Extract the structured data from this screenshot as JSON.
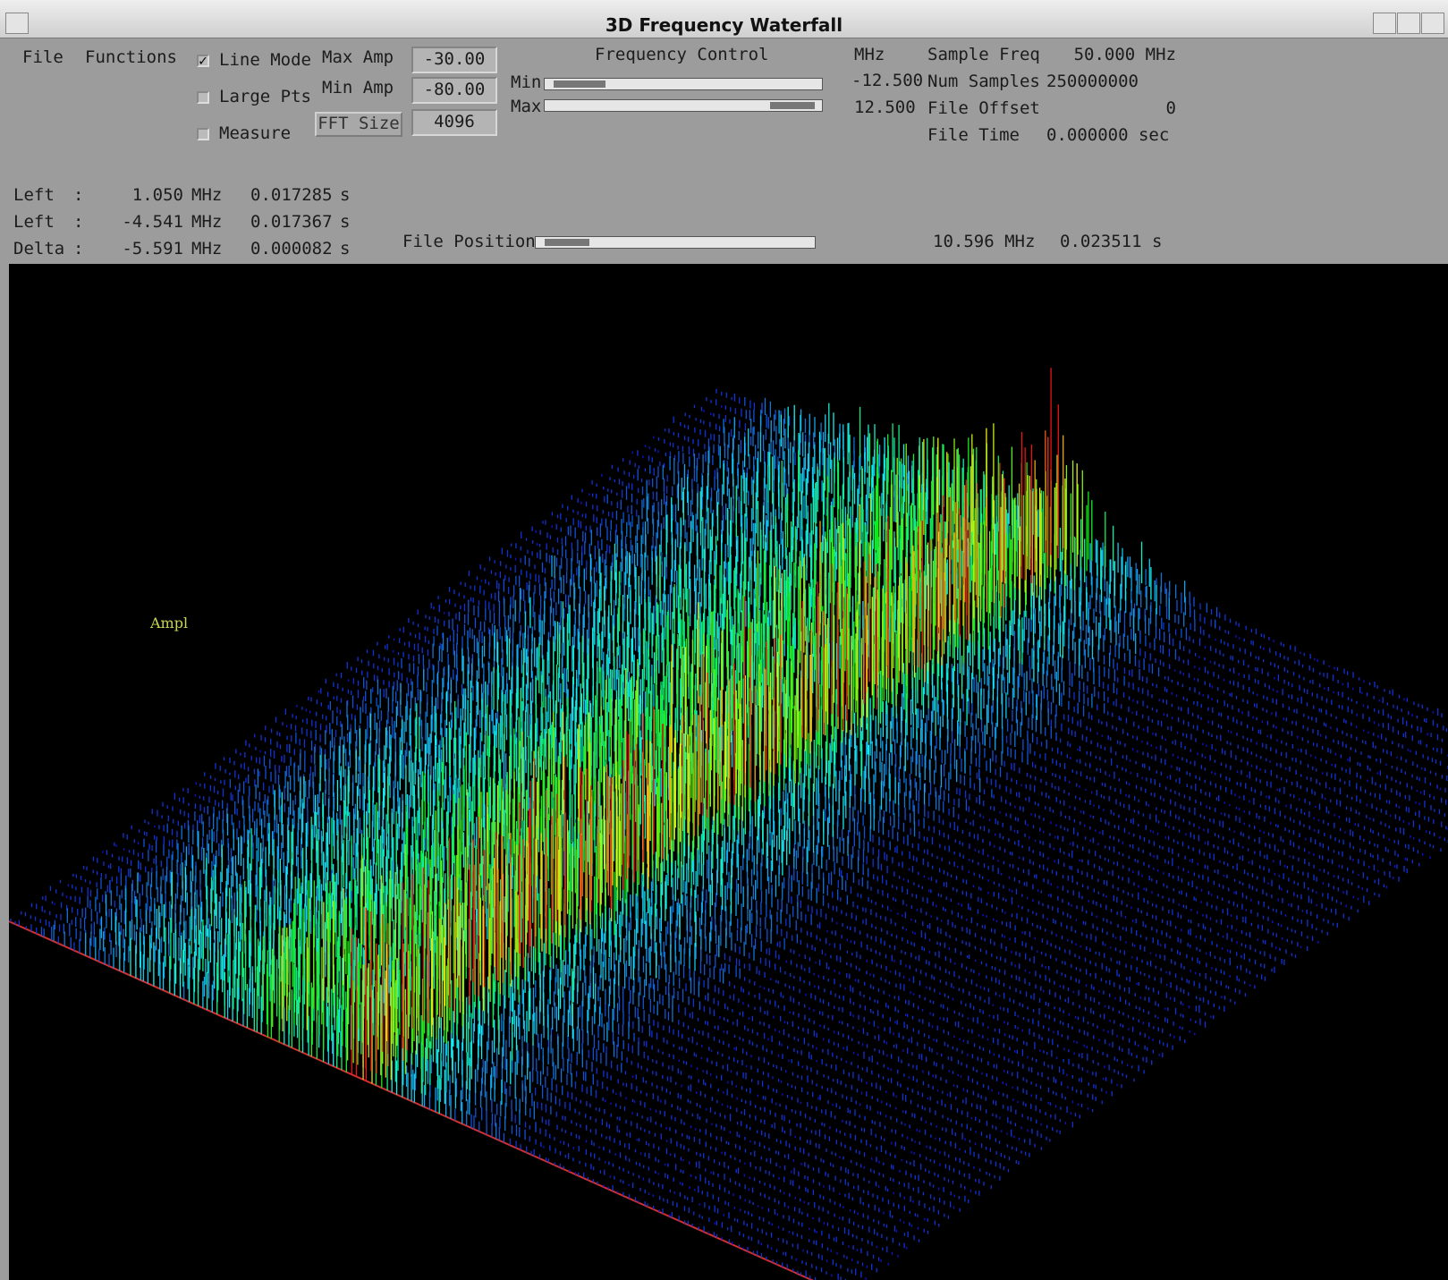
{
  "window": {
    "title": "3D Frequency Waterfall"
  },
  "menu": [
    "File",
    "Functions"
  ],
  "options": [
    {
      "label": "Line Mode",
      "checked": true
    },
    {
      "label": "Large Pts",
      "checked": false
    },
    {
      "label": "Measure",
      "checked": false
    }
  ],
  "amplitude": {
    "max_label": "Max Amp",
    "max_value": "-30.00",
    "min_label": "Min Amp",
    "min_value": "-80.00",
    "fft_button": "FFT Size",
    "fft_value": "4096"
  },
  "frequency_control": {
    "title": "Frequency Control",
    "min_label": "Min",
    "max_label": "Max",
    "unit": "MHz",
    "min_value": "-12.500",
    "max_value": "12.500"
  },
  "file_info": [
    {
      "label": "Sample Freq",
      "value": "50.000 MHz"
    },
    {
      "label": "Num Samples",
      "value": "250000000"
    },
    {
      "label": "File Offset",
      "value": "0"
    },
    {
      "label": "File Time",
      "value": "0.000000 sec"
    }
  ],
  "measurements": [
    {
      "name": "Left",
      "sep": ":",
      "freq": "1.050",
      "freq_unit": "MHz",
      "time": "0.017285",
      "time_unit": "s"
    },
    {
      "name": "Left",
      "sep": ":",
      "freq": "-4.541",
      "freq_unit": "MHz",
      "time": "0.017367",
      "time_unit": "s"
    },
    {
      "name": "Delta",
      "sep": ":",
      "freq": "-5.591",
      "freq_unit": "MHz",
      "time": "0.000082",
      "time_unit": "s"
    }
  ],
  "file_position": {
    "label": "File Position",
    "freq": "10.596 MHz",
    "time": "0.023511 s"
  },
  "plot": {
    "axis_label": "Ampl"
  }
}
